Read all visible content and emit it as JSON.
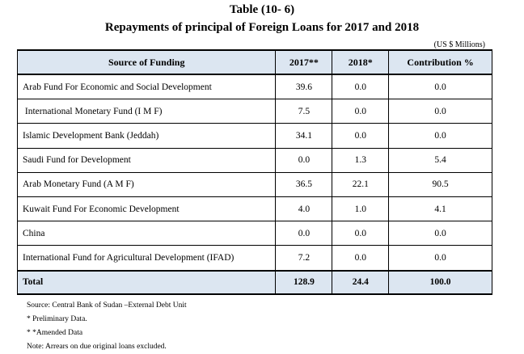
{
  "header": {
    "table_number": "Table (10- 6)",
    "title": "Repayments of principal of Foreign Loans for 2017 and 2018",
    "units": "(US $ Millions)"
  },
  "table": {
    "columns": [
      "Source of Funding",
      "2017**",
      "2018*",
      "Contribution %"
    ],
    "rows": [
      {
        "source": "Arab Fund For Economic and Social Development",
        "y2017": "39.6",
        "y2018": "0.0",
        "contribution": "0.0"
      },
      {
        "source": " International Monetary Fund (I M F)",
        "y2017": "7.5",
        "y2018": "0.0",
        "contribution": "0.0"
      },
      {
        "source": "Islamic Development Bank (Jeddah)",
        "y2017": "34.1",
        "y2018": "0.0",
        "contribution": "0.0"
      },
      {
        "source": "Saudi Fund for Development",
        "y2017": "0.0",
        "y2018": "1.3",
        "contribution": "5.4"
      },
      {
        "source": "Arab Monetary Fund (A M F)",
        "y2017": "36.5",
        "y2018": "22.1",
        "contribution": "90.5"
      },
      {
        "source": "Kuwait Fund For Economic Development",
        "y2017": "4.0",
        "y2018": "1.0",
        "contribution": "4.1"
      },
      {
        "source": "China",
        "y2017": "0.0",
        "y2018": "0.0",
        "contribution": "0.0"
      },
      {
        "source": "International Fund for Agricultural Development (IFAD)",
        "y2017": "7.2",
        "y2018": "0.0",
        "contribution": "0.0"
      }
    ],
    "total": {
      "source": "Total",
      "y2017": "128.9",
      "y2018": "24.4",
      "contribution": "100.0"
    }
  },
  "notes": [
    "Source:  Central Bank of Sudan –External Debt Unit",
    "* Preliminary Data.",
    "* *Amended Data",
    "Note: Arrears on due original loans excluded."
  ],
  "colors": {
    "header_bg": "#dce6f1"
  }
}
